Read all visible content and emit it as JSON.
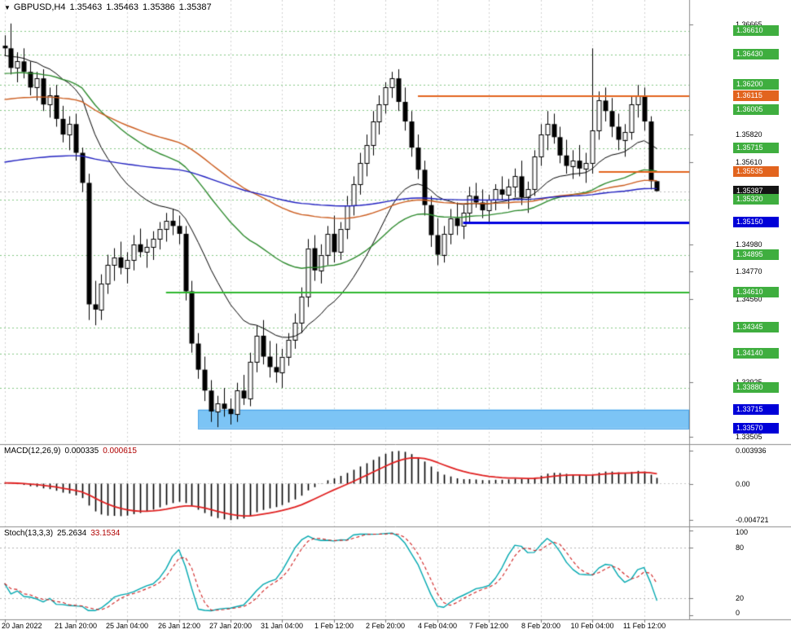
{
  "header": {
    "dropdown_glyph": "▼",
    "symbol_period": "GBPUSD,H4",
    "open": "1.35463",
    "high": "1.35463",
    "low": "1.35386",
    "close": "1.35387"
  },
  "colors": {
    "tag_green": "#3fae3f",
    "tag_orange": "#e2641e",
    "tag_blue": "#0000d8",
    "tag_black": "#141414",
    "grid": "#d2d2d2",
    "level_green": "#84c884",
    "separator": "#8c8c8c"
  },
  "chart_data": {
    "type": "candlestick",
    "symbol": "GBPUSD",
    "timeframe": "H4",
    "title": "GBPUSD,H4",
    "price_range": {
      "top": 1.3685,
      "bottom": 1.3345
    },
    "x_labels": [
      "20 Jan 2022",
      "21 Jan 20:00",
      "25 Jan 04:00",
      "26 Jan 12:00",
      "27 Jan 20:00",
      "31 Jan 04:00",
      "1 Feb 12:00",
      "2 Feb 20:00",
      "4 Feb 04:00",
      "7 Feb 12:00",
      "8 Feb 20:00",
      "10 Feb 04:00",
      "11 Feb 12:00"
    ],
    "x_label_indices": [
      0,
      11,
      19,
      27,
      35,
      43,
      51,
      59,
      67,
      75,
      83,
      91,
      99
    ],
    "plain_ticks": [
      "1.36665",
      "1.35820",
      "1.35610",
      "1.34980",
      "1.34770",
      "1.34560",
      "1.33925",
      "1.33505"
    ],
    "tag_labels": [
      {
        "price": 1.3661,
        "text": "1.36610",
        "color": "green"
      },
      {
        "price": 1.3643,
        "text": "1.36430",
        "color": "green"
      },
      {
        "price": 1.362,
        "text": "1.36200",
        "color": "green"
      },
      {
        "price": 1.36115,
        "text": "1.36115",
        "color": "orange"
      },
      {
        "price": 1.36005,
        "text": "1.36005",
        "color": "green"
      },
      {
        "price": 1.35715,
        "text": "1.35715",
        "color": "green"
      },
      {
        "price": 1.35535,
        "text": "1.35535",
        "color": "orange"
      },
      {
        "price": 1.35387,
        "text": "1.35387",
        "color": "black"
      },
      {
        "price": 1.3532,
        "text": "1.35320",
        "color": "green"
      },
      {
        "price": 1.3515,
        "text": "1.35150",
        "color": "blue"
      },
      {
        "price": 1.34895,
        "text": "1.34895",
        "color": "green"
      },
      {
        "price": 1.3461,
        "text": "1.34610",
        "color": "green"
      },
      {
        "price": 1.34345,
        "text": "1.34345",
        "color": "green"
      },
      {
        "price": 1.3414,
        "text": "1.34140",
        "color": "green"
      },
      {
        "price": 1.3388,
        "text": "1.33880",
        "color": "green"
      },
      {
        "price": 1.33715,
        "text": "1.33715",
        "color": "blue"
      },
      {
        "price": 1.3357,
        "text": "1.33570",
        "color": "blue"
      }
    ],
    "green_dashed_levels": [
      1.3661,
      1.3643,
      1.362,
      1.36005,
      1.35715,
      1.3532,
      1.34895,
      1.34345,
      1.3414,
      1.3388
    ],
    "line_objects": [
      {
        "price": 1.36115,
        "start_index": 64,
        "color": "#e2641e",
        "width": 2
      },
      {
        "price": 1.35535,
        "start_index": 92,
        "color": "#e2641e",
        "width": 2
      },
      {
        "price": 1.3515,
        "start_index": 71,
        "color": "#0000e0",
        "width": 3
      },
      {
        "price": 1.3461,
        "start_index": 25,
        "color": "#2eb82e",
        "width": 2
      }
    ],
    "rectangle": {
      "price_top": 1.33715,
      "price_bottom": 1.3357,
      "start_index": 30,
      "fill": "#7cc4f5",
      "border": "#4aa3e8"
    },
    "current_price": 1.35387,
    "moving_averages": [
      {
        "name": "fast-ma",
        "period": 21,
        "seed": 1.3642,
        "color": "#000000",
        "width": 1
      },
      {
        "name": "mid-ma",
        "period": 50,
        "seed": 1.3628,
        "color": "#2e8b2e",
        "width": 1.4
      },
      {
        "name": "slow-ma",
        "period": 96,
        "seed": 1.3608,
        "color": "#cc5c1e",
        "width": 1.4
      },
      {
        "name": "very-slow-ma",
        "period": 200,
        "seed": 1.356,
        "color": "#2020c0",
        "width": 1.4
      }
    ],
    "candles": [
      [
        1.365,
        1.3658,
        1.3642,
        1.3648
      ],
      [
        1.3648,
        1.3667,
        1.3628,
        1.3633
      ],
      [
        1.3633,
        1.3645,
        1.3622,
        1.3638
      ],
      [
        1.3638,
        1.3648,
        1.3625,
        1.363
      ],
      [
        1.363,
        1.3638,
        1.3612,
        1.3618
      ],
      [
        1.3618,
        1.363,
        1.3608,
        1.3625
      ],
      [
        1.3625,
        1.3632,
        1.36,
        1.3605
      ],
      [
        1.3605,
        1.3618,
        1.3595,
        1.3612
      ],
      [
        1.3612,
        1.362,
        1.3588,
        1.3594
      ],
      [
        1.3594,
        1.3604,
        1.3576,
        1.3582
      ],
      [
        1.3582,
        1.3596,
        1.357,
        1.359
      ],
      [
        1.359,
        1.3598,
        1.3562,
        1.3568
      ],
      [
        1.3568,
        1.3572,
        1.3538,
        1.3545
      ],
      [
        1.3545,
        1.3552,
        1.344,
        1.3452
      ],
      [
        1.3452,
        1.347,
        1.3436,
        1.3448
      ],
      [
        1.3448,
        1.3475,
        1.344,
        1.3468
      ],
      [
        1.3468,
        1.349,
        1.346,
        1.3482
      ],
      [
        1.3482,
        1.3495,
        1.347,
        1.3488
      ],
      [
        1.3488,
        1.35,
        1.3475,
        1.348
      ],
      [
        1.348,
        1.3492,
        1.3468,
        1.3486
      ],
      [
        1.3486,
        1.3505,
        1.3478,
        1.3498
      ],
      [
        1.3498,
        1.351,
        1.3488,
        1.3492
      ],
      [
        1.3492,
        1.3502,
        1.348,
        1.3496
      ],
      [
        1.3496,
        1.3508,
        1.3486,
        1.3502
      ],
      [
        1.3502,
        1.3515,
        1.3494,
        1.351
      ],
      [
        1.351,
        1.3522,
        1.35,
        1.3516
      ],
      [
        1.3516,
        1.3525,
        1.3505,
        1.3512
      ],
      [
        1.3512,
        1.352,
        1.3498,
        1.3506
      ],
      [
        1.3506,
        1.3512,
        1.3455,
        1.3462
      ],
      [
        1.3462,
        1.347,
        1.3415,
        1.3422
      ],
      [
        1.3422,
        1.343,
        1.3395,
        1.3402
      ],
      [
        1.3402,
        1.3412,
        1.3378,
        1.3386
      ],
      [
        1.3386,
        1.3394,
        1.3362,
        1.337
      ],
      [
        1.337,
        1.3382,
        1.3358,
        1.3376
      ],
      [
        1.3376,
        1.3388,
        1.3366,
        1.3372
      ],
      [
        1.3372,
        1.338,
        1.336,
        1.3368
      ],
      [
        1.3368,
        1.3392,
        1.3362,
        1.3386
      ],
      [
        1.3386,
        1.3398,
        1.3375,
        1.338
      ],
      [
        1.338,
        1.3415,
        1.3374,
        1.3408
      ],
      [
        1.3408,
        1.3436,
        1.34,
        1.3428
      ],
      [
        1.3428,
        1.344,
        1.3406,
        1.3412
      ],
      [
        1.3412,
        1.3424,
        1.3396,
        1.3404
      ],
      [
        1.3404,
        1.3422,
        1.3392,
        1.34
      ],
      [
        1.34,
        1.3418,
        1.3388,
        1.3412
      ],
      [
        1.3412,
        1.343,
        1.3405,
        1.3425
      ],
      [
        1.3425,
        1.3445,
        1.3418,
        1.3438
      ],
      [
        1.3438,
        1.3465,
        1.343,
        1.3458
      ],
      [
        1.3458,
        1.3502,
        1.345,
        1.3495
      ],
      [
        1.3495,
        1.3505,
        1.347,
        1.3478
      ],
      [
        1.3478,
        1.3498,
        1.3468,
        1.349
      ],
      [
        1.349,
        1.3512,
        1.3482,
        1.3506
      ],
      [
        1.3506,
        1.352,
        1.3484,
        1.3492
      ],
      [
        1.3492,
        1.3515,
        1.3486,
        1.351
      ],
      [
        1.351,
        1.3535,
        1.3502,
        1.3528
      ],
      [
        1.3528,
        1.355,
        1.352,
        1.3544
      ],
      [
        1.3544,
        1.3568,
        1.3536,
        1.356
      ],
      [
        1.356,
        1.3582,
        1.355,
        1.3574
      ],
      [
        1.3574,
        1.36,
        1.3566,
        1.3592
      ],
      [
        1.3592,
        1.3612,
        1.3582,
        1.3605
      ],
      [
        1.3605,
        1.3622,
        1.3598,
        1.3618
      ],
      [
        1.3618,
        1.363,
        1.361,
        1.3625
      ],
      [
        1.3625,
        1.3632,
        1.36,
        1.3607
      ],
      [
        1.3607,
        1.3618,
        1.3585,
        1.3592
      ],
      [
        1.3592,
        1.36,
        1.3565,
        1.3572
      ],
      [
        1.3572,
        1.3582,
        1.3548,
        1.3555
      ],
      [
        1.3555,
        1.3562,
        1.352,
        1.3528
      ],
      [
        1.3528,
        1.3535,
        1.3496,
        1.3505
      ],
      [
        1.3505,
        1.3518,
        1.3482,
        1.349
      ],
      [
        1.349,
        1.3512,
        1.3484,
        1.3506
      ],
      [
        1.3506,
        1.3525,
        1.3498,
        1.3518
      ],
      [
        1.3518,
        1.353,
        1.3505,
        1.3512
      ],
      [
        1.3512,
        1.3528,
        1.3502,
        1.3522
      ],
      [
        1.3522,
        1.3542,
        1.3515,
        1.3535
      ],
      [
        1.3535,
        1.3545,
        1.3526,
        1.353
      ],
      [
        1.353,
        1.354,
        1.3518,
        1.3524
      ],
      [
        1.3524,
        1.3536,
        1.3515,
        1.3532
      ],
      [
        1.3532,
        1.3544,
        1.3524,
        1.354
      ],
      [
        1.354,
        1.355,
        1.3532,
        1.3536
      ],
      [
        1.3536,
        1.3548,
        1.3525,
        1.3542
      ],
      [
        1.3542,
        1.3556,
        1.3534,
        1.355
      ],
      [
        1.355,
        1.3562,
        1.3528,
        1.3534
      ],
      [
        1.3534,
        1.3546,
        1.3522,
        1.354
      ],
      [
        1.354,
        1.357,
        1.3535,
        1.3565
      ],
      [
        1.3565,
        1.359,
        1.3558,
        1.3582
      ],
      [
        1.3582,
        1.36,
        1.357,
        1.359
      ],
      [
        1.359,
        1.3598,
        1.3575,
        1.358
      ],
      [
        1.358,
        1.3588,
        1.356,
        1.3566
      ],
      [
        1.3566,
        1.3578,
        1.3552,
        1.3558
      ],
      [
        1.3558,
        1.357,
        1.3548,
        1.3562
      ],
      [
        1.3562,
        1.3574,
        1.355,
        1.3556
      ],
      [
        1.3556,
        1.3568,
        1.3545,
        1.356
      ],
      [
        1.356,
        1.3648,
        1.3552,
        1.3585
      ],
      [
        1.3585,
        1.3615,
        1.3578,
        1.3608
      ],
      [
        1.3608,
        1.3618,
        1.3592,
        1.36
      ],
      [
        1.36,
        1.361,
        1.358,
        1.3588
      ],
      [
        1.3588,
        1.3598,
        1.357,
        1.3578
      ],
      [
        1.3578,
        1.359,
        1.3565,
        1.3584
      ],
      [
        1.3584,
        1.3612,
        1.3578,
        1.3605
      ],
      [
        1.3605,
        1.362,
        1.3595,
        1.3612
      ],
      [
        1.3612,
        1.3618,
        1.3585,
        1.3592
      ],
      [
        1.3592,
        1.3596,
        1.354,
        1.35463
      ],
      [
        1.35463,
        1.35463,
        1.35386,
        1.35387
      ]
    ],
    "macd": {
      "name": "MACD(12,26,9)",
      "params": [
        12,
        26,
        9
      ],
      "value_main": "0.000335",
      "value_signal": "0.000615",
      "axis_labels": {
        "top": "0.003936",
        "zero": "0.00",
        "bottom": "-0.004721"
      },
      "histogram_color": "#000000",
      "signal_color": "#e02020"
    },
    "stochastic": {
      "name": "Stoch(13,3,3)",
      "params": [
        13,
        3,
        3
      ],
      "value_main": "25.2634",
      "value_signal": "33.1534",
      "levels": [
        80,
        20
      ],
      "axis_labels": [
        "100",
        "80",
        "20",
        "0"
      ],
      "main_color": "#00a8b0",
      "signal_color": "#d02020"
    }
  }
}
